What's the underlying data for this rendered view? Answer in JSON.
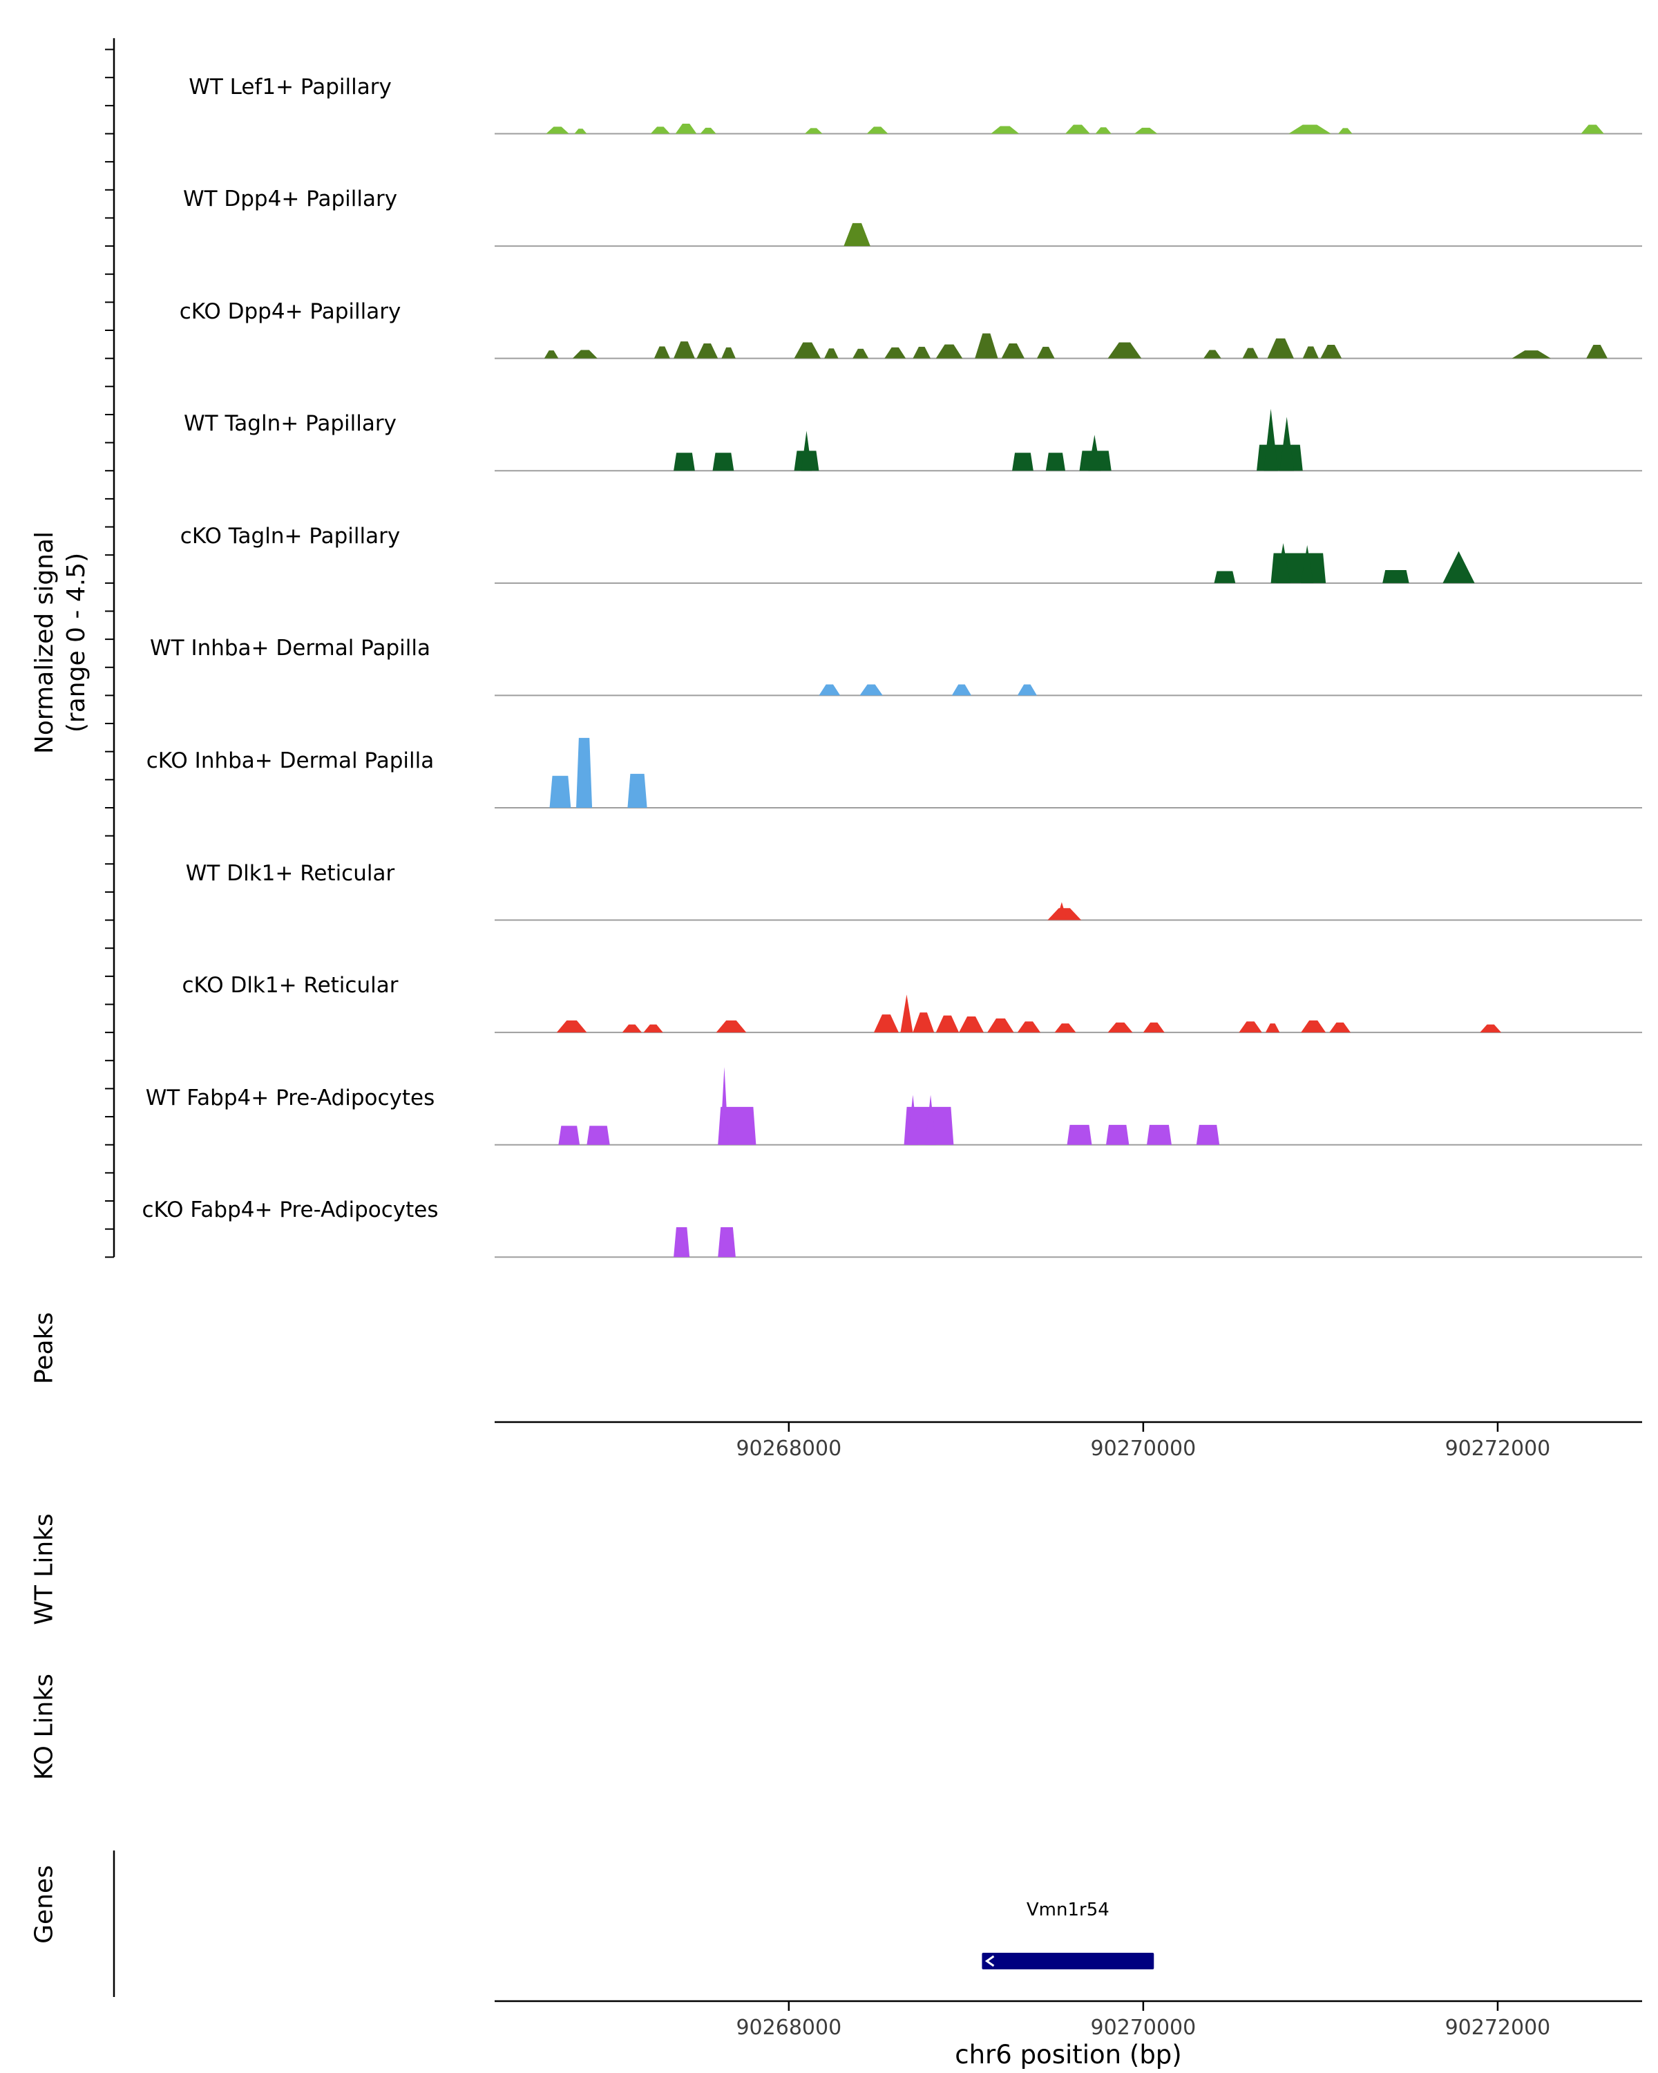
{
  "figure": {
    "y_axis_title_line1": "Normalized signal",
    "y_axis_title_line2": "(range 0 - 4.5)",
    "x_axis_title": "chr6 position (bp)",
    "section_labels": {
      "peaks": "Peaks",
      "wt_links": "WT Links",
      "ko_links": "KO Links",
      "genes": "Genes"
    }
  },
  "chart_data": {
    "type": "area",
    "description": "Genome browser normalized signal coverage tracks over chr6 region",
    "x_domain_bp": [
      90266340,
      90272815
    ],
    "x_ticks": [
      {
        "bp": 90268000,
        "label": "90268000"
      },
      {
        "bp": 90270000,
        "label": "90270000"
      },
      {
        "bp": 90272000,
        "label": "90272000"
      }
    ],
    "signal_range": [
      0,
      4.5
    ],
    "tracks": [
      {
        "label": "WT Lef1+ Papillary",
        "color": "#7dc13b",
        "default_shape": "m",
        "peaks": [
          [
            90266630,
            90266760,
            0.35
          ],
          [
            90266790,
            90266860,
            0.25
          ],
          [
            90267220,
            90267330,
            0.35
          ],
          [
            90267360,
            90267480,
            0.5
          ],
          [
            90267500,
            90267590,
            0.3
          ],
          [
            90268090,
            90268190,
            0.28
          ],
          [
            90268440,
            90268560,
            0.35
          ],
          [
            90269140,
            90269300,
            0.38
          ],
          [
            90269560,
            90269700,
            0.45
          ],
          [
            90269730,
            90269820,
            0.32
          ],
          [
            90269950,
            90270080,
            0.3
          ],
          [
            90270820,
            90271060,
            0.45
          ],
          [
            90271100,
            90271180,
            0.28
          ],
          [
            90272470,
            90272600,
            0.45
          ]
        ]
      },
      {
        "label": "WT Dpp4+ Papillary",
        "color": "#5a8a1e",
        "default_shape": "m",
        "peaks": [
          [
            90268310,
            90268460,
            1.15
          ]
        ]
      },
      {
        "label": "cKO Dpp4+ Papillary",
        "color": "#4a711c",
        "default_shape": "m",
        "peaks": [
          [
            90266620,
            90266700,
            0.4
          ],
          [
            90266780,
            90266920,
            0.42
          ],
          [
            90267240,
            90267330,
            0.6
          ],
          [
            90267350,
            90267470,
            0.85
          ],
          [
            90267480,
            90267600,
            0.75
          ],
          [
            90267620,
            90267700,
            0.55
          ],
          [
            90268030,
            90268180,
            0.8
          ],
          [
            90268200,
            90268280,
            0.5
          ],
          [
            90268360,
            90268450,
            0.48
          ],
          [
            90268540,
            90268660,
            0.55
          ],
          [
            90268700,
            90268800,
            0.58
          ],
          [
            90268830,
            90268980,
            0.7
          ],
          [
            90269050,
            90269180,
            1.25
          ],
          [
            90269200,
            90269330,
            0.75
          ],
          [
            90269400,
            90269500,
            0.58
          ],
          [
            90269800,
            90269990,
            0.8
          ],
          [
            90270340,
            90270440,
            0.42
          ],
          [
            90270560,
            90270650,
            0.52
          ],
          [
            90270700,
            90270850,
            1.0
          ],
          [
            90270900,
            90270990,
            0.6
          ],
          [
            90271000,
            90271120,
            0.68
          ],
          [
            90272080,
            90272300,
            0.4
          ],
          [
            90272500,
            90272620,
            0.68
          ]
        ]
      },
      {
        "label": "WT Tagln+ Papillary",
        "color": "#0d5c23",
        "default_shape": "b",
        "peaks": [
          [
            90267350,
            90267470,
            0.9
          ],
          [
            90267570,
            90267690,
            0.9
          ],
          [
            90268030,
            90268170,
            1.0
          ],
          [
            90268070,
            90268130,
            2.0,
            "t"
          ],
          [
            90269260,
            90269380,
            0.9
          ],
          [
            90269450,
            90269560,
            0.9
          ],
          [
            90269640,
            90269820,
            1.0
          ],
          [
            90269690,
            90269760,
            1.8,
            "t"
          ],
          [
            90270640,
            90270900,
            1.3
          ],
          [
            90270680,
            90270760,
            3.1,
            "t"
          ],
          [
            90270770,
            90270850,
            2.7,
            "t"
          ]
        ]
      },
      {
        "label": "cKO Tagln+ Papillary",
        "color": "#0d5c23",
        "default_shape": "b",
        "peaks": [
          [
            90270400,
            90270520,
            0.6
          ],
          [
            90270720,
            90271030,
            1.5
          ],
          [
            90270750,
            90270830,
            2.0,
            "t"
          ],
          [
            90270890,
            90270960,
            1.9,
            "t"
          ],
          [
            90271350,
            90271500,
            0.65
          ],
          [
            90271690,
            90271870,
            1.6,
            "t"
          ]
        ]
      },
      {
        "label": "WT Inhba+ Dermal Papilla",
        "color": "#5ea9e6",
        "default_shape": "m",
        "peaks": [
          [
            90268170,
            90268290,
            0.55
          ],
          [
            90268400,
            90268530,
            0.55
          ],
          [
            90268920,
            90269030,
            0.55
          ],
          [
            90269290,
            90269400,
            0.55
          ]
        ]
      },
      {
        "label": "cKO Inhba+ Dermal Papilla",
        "color": "#5ea9e6",
        "default_shape": "b",
        "peaks": [
          [
            90266650,
            90266770,
            1.6
          ],
          [
            90266800,
            90266890,
            3.5
          ],
          [
            90267090,
            90267200,
            1.7
          ]
        ]
      },
      {
        "label": "WT Dlk1+ Reticular",
        "color": "#e93529",
        "default_shape": "m",
        "peaks": [
          [
            90269460,
            90269650,
            0.6
          ],
          [
            90269510,
            90269570,
            0.9,
            "t"
          ]
        ]
      },
      {
        "label": "cKO Dlk1+ Reticular",
        "color": "#e93529",
        "default_shape": "m",
        "peaks": [
          [
            90266690,
            90266860,
            0.6
          ],
          [
            90267060,
            90267170,
            0.4
          ],
          [
            90267180,
            90267290,
            0.4
          ],
          [
            90267590,
            90267760,
            0.6
          ],
          [
            90268480,
            90268620,
            0.9
          ],
          [
            90268630,
            90268700,
            1.9,
            "t"
          ],
          [
            90268700,
            90268820,
            1.0
          ],
          [
            90268830,
            90268960,
            0.85
          ],
          [
            90268960,
            90269100,
            0.8
          ],
          [
            90269120,
            90269270,
            0.7
          ],
          [
            90269290,
            90269420,
            0.55
          ],
          [
            90269500,
            90269620,
            0.45
          ],
          [
            90269800,
            90269940,
            0.5
          ],
          [
            90270000,
            90270120,
            0.5
          ],
          [
            90270540,
            90270670,
            0.55
          ],
          [
            90270690,
            90270770,
            0.45
          ],
          [
            90270890,
            90271030,
            0.6
          ],
          [
            90271050,
            90271170,
            0.5
          ],
          [
            90271900,
            90272020,
            0.4
          ]
        ]
      },
      {
        "label": "WT Fabp4+ Pre-Adipocytes",
        "color": "#b14fee",
        "default_shape": "b",
        "peaks": [
          [
            90266700,
            90266820,
            0.95
          ],
          [
            90266860,
            90266990,
            0.95
          ],
          [
            90267600,
            90267815,
            1.9
          ],
          [
            90267612,
            90267660,
            3.9,
            "t"
          ],
          [
            90268650,
            90268930,
            1.9
          ],
          [
            90268670,
            90268730,
            2.5,
            "t"
          ],
          [
            90268770,
            90268830,
            2.5,
            "t"
          ],
          [
            90269570,
            90269710,
            1.0
          ],
          [
            90269790,
            90269920,
            1.0
          ],
          [
            90270020,
            90270160,
            1.0
          ],
          [
            90270300,
            90270430,
            1.0
          ]
        ]
      },
      {
        "label": "cKO Fabp4+ Pre-Adipocytes",
        "color": "#b14fee",
        "default_shape": "b",
        "peaks": [
          [
            90267350,
            90267440,
            1.5
          ],
          [
            90267600,
            90267700,
            1.5
          ]
        ]
      }
    ],
    "peaks_track": [],
    "wt_links": [],
    "ko_links": [],
    "genes": [
      {
        "name": "Vmn1r54",
        "start": 90269090,
        "end": 90270060,
        "strand": "-",
        "color": "#000080"
      }
    ]
  }
}
